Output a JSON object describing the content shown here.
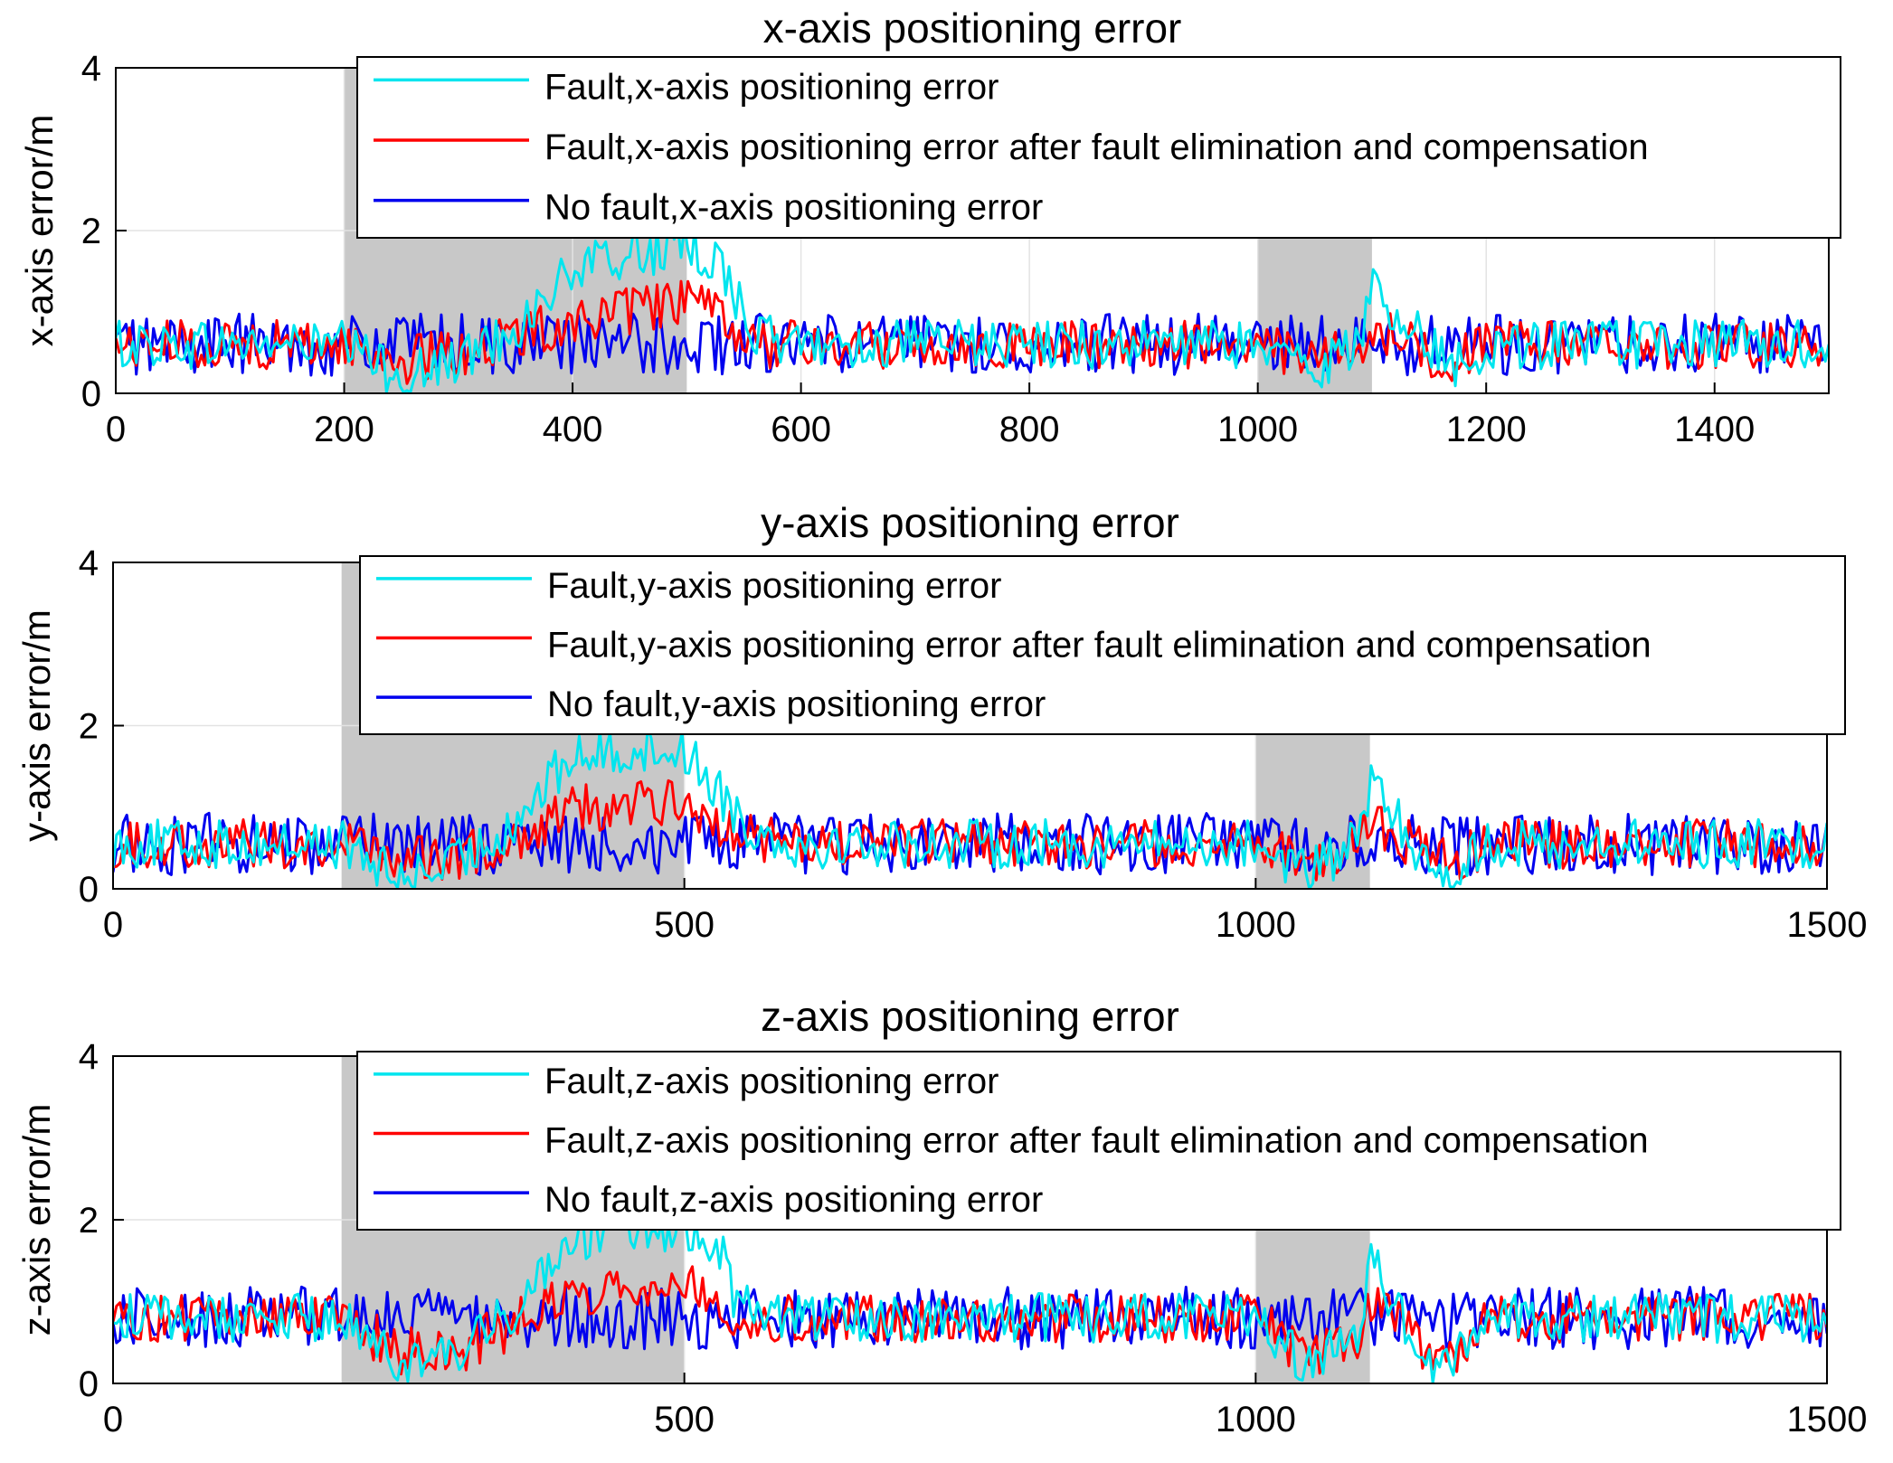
{
  "chart_data": [
    {
      "type": "line",
      "title": "x-axis positioning error",
      "xlabel": "",
      "ylabel": "x-axis error/m",
      "xlim": [
        0,
        1500
      ],
      "ylim": [
        0,
        4
      ],
      "xticks": [
        "0",
        "200",
        "400",
        "600",
        "800",
        "1000",
        "1200",
        "1400"
      ],
      "xtick_values": [
        0,
        200,
        400,
        600,
        800,
        1000,
        1200,
        1400
      ],
      "yticks": [
        "0",
        "2",
        "4"
      ],
      "ytick_values": [
        0,
        2,
        4
      ],
      "grid": true,
      "legend_position": "top-right",
      "shaded_intervals": [
        [
          200,
          500
        ],
        [
          1000,
          1100
        ]
      ],
      "series": [
        {
          "name": "Fault,x-axis positioning error",
          "color": "#00e5ee",
          "x": [
            0,
            100,
            200,
            250,
            300,
            350,
            400,
            450,
            500,
            530,
            560,
            600,
            700,
            800,
            900,
            1000,
            1050,
            1090,
            1100,
            1150,
            1170,
            1200,
            1300,
            1400,
            1500
          ],
          "values": [
            0.6,
            0.6,
            0.6,
            0.2,
            0.4,
            0.8,
            1.5,
            1.7,
            1.8,
            1.6,
            0.7,
            0.6,
            0.6,
            0.6,
            0.6,
            0.6,
            0.3,
            0.6,
            1.3,
            0.6,
            0.3,
            0.6,
            0.6,
            0.6,
            0.6
          ]
        },
        {
          "name": "Fault,x-axis positioning error after fault elimination and compensation",
          "color": "#ff0000",
          "x": [
            0,
            100,
            200,
            250,
            300,
            350,
            400,
            450,
            500,
            530,
            560,
            600,
            700,
            800,
            900,
            1000,
            1050,
            1090,
            1100,
            1150,
            1170,
            1200,
            1300,
            1400,
            1500
          ],
          "values": [
            0.6,
            0.6,
            0.6,
            0.4,
            0.5,
            0.7,
            0.9,
            1.0,
            1.15,
            0.9,
            0.6,
            0.6,
            0.6,
            0.6,
            0.6,
            0.6,
            0.4,
            0.6,
            0.8,
            0.5,
            0.4,
            0.6,
            0.6,
            0.6,
            0.6
          ]
        },
        {
          "name": "No fault,x-axis positioning error",
          "color": "#0000ee",
          "x": [
            0,
            100,
            200,
            300,
            400,
            500,
            600,
            700,
            800,
            900,
            1000,
            1100,
            1200,
            1300,
            1400,
            1500
          ],
          "values": [
            0.6,
            0.6,
            0.6,
            0.6,
            0.6,
            0.6,
            0.6,
            0.6,
            0.6,
            0.6,
            0.6,
            0.6,
            0.6,
            0.6,
            0.6,
            0.6
          ]
        }
      ]
    },
    {
      "type": "line",
      "title": "y-axis positioning error",
      "xlabel": "",
      "ylabel": "y-axis error/m",
      "xlim": [
        0,
        1500
      ],
      "ylim": [
        0,
        4
      ],
      "xticks": [
        "0",
        "500",
        "1000",
        "1500"
      ],
      "xtick_values": [
        0,
        500,
        1000,
        1500
      ],
      "yticks": [
        "0",
        "2",
        "4"
      ],
      "ytick_values": [
        0,
        2,
        4
      ],
      "grid": true,
      "legend_position": "top-right",
      "shaded_intervals": [
        [
          200,
          500
        ],
        [
          1000,
          1100
        ]
      ],
      "series": [
        {
          "name": "Fault,y-axis positioning error",
          "color": "#00e5ee",
          "x": [
            0,
            100,
            200,
            250,
            300,
            350,
            400,
            450,
            500,
            530,
            560,
            600,
            700,
            800,
            900,
            1000,
            1050,
            1090,
            1100,
            1150,
            1170,
            1200,
            1300,
            1400,
            1500
          ],
          "values": [
            0.55,
            0.55,
            0.55,
            0.1,
            0.3,
            0.8,
            1.6,
            1.7,
            1.7,
            1.2,
            0.7,
            0.55,
            0.55,
            0.55,
            0.55,
            0.55,
            0.2,
            0.6,
            1.3,
            0.3,
            0.1,
            0.55,
            0.55,
            0.55,
            0.55
          ]
        },
        {
          "name": "Fault,y-axis positioning error after fault elimination and compensation",
          "color": "#ff0000",
          "x": [
            0,
            100,
            200,
            250,
            300,
            350,
            400,
            450,
            500,
            530,
            560,
            600,
            700,
            800,
            900,
            1000,
            1050,
            1090,
            1100,
            1150,
            1170,
            1200,
            1300,
            1400,
            1500
          ],
          "values": [
            0.55,
            0.55,
            0.55,
            0.4,
            0.35,
            0.6,
            1.0,
            1.0,
            1.1,
            0.8,
            0.6,
            0.55,
            0.55,
            0.55,
            0.55,
            0.55,
            0.3,
            0.6,
            0.9,
            0.4,
            0.3,
            0.55,
            0.55,
            0.55,
            0.55
          ]
        },
        {
          "name": "No fault,y-axis positioning error",
          "color": "#0000ee",
          "x": [
            0,
            100,
            200,
            300,
            400,
            500,
            600,
            700,
            800,
            900,
            1000,
            1100,
            1200,
            1300,
            1400,
            1500
          ],
          "values": [
            0.55,
            0.55,
            0.55,
            0.55,
            0.55,
            0.55,
            0.55,
            0.55,
            0.55,
            0.55,
            0.55,
            0.55,
            0.55,
            0.55,
            0.55,
            0.55
          ]
        }
      ]
    },
    {
      "type": "line",
      "title": "z-axis positioning error",
      "xlabel": "",
      "ylabel": "z-axis error/m",
      "xlim": [
        0,
        1500
      ],
      "ylim": [
        0,
        4
      ],
      "xticks": [
        "0",
        "500",
        "1000",
        "1500"
      ],
      "xtick_values": [
        0,
        500,
        1000,
        1500
      ],
      "yticks": [
        "0",
        "2",
        "4"
      ],
      "ytick_values": [
        0,
        2,
        4
      ],
      "grid": true,
      "legend_position": "top-right",
      "shaded_intervals": [
        [
          200,
          500
        ],
        [
          1000,
          1100
        ]
      ],
      "series": [
        {
          "name": "Fault,z-axis positioning error",
          "color": "#00e5ee",
          "x": [
            0,
            100,
            200,
            250,
            300,
            350,
            400,
            450,
            500,
            530,
            545,
            600,
            700,
            800,
            900,
            1000,
            1050,
            1090,
            1100,
            1150,
            1170,
            1200,
            1300,
            1400,
            1500
          ],
          "values": [
            0.8,
            0.8,
            0.8,
            0.2,
            0.3,
            0.9,
            1.8,
            1.85,
            1.9,
            1.7,
            1.0,
            0.8,
            0.8,
            0.8,
            0.8,
            0.8,
            0.2,
            0.6,
            1.5,
            0.3,
            0.2,
            0.8,
            0.8,
            0.8,
            0.8
          ]
        },
        {
          "name": "Fault,z-axis positioning error after fault elimination and compensation",
          "color": "#ff0000",
          "x": [
            0,
            100,
            200,
            250,
            300,
            350,
            400,
            450,
            500,
            530,
            545,
            600,
            700,
            800,
            900,
            1000,
            1050,
            1090,
            1100,
            1150,
            1170,
            1200,
            1300,
            1400,
            1500
          ],
          "values": [
            0.8,
            0.8,
            0.8,
            0.4,
            0.4,
            0.7,
            1.1,
            1.2,
            1.3,
            1.0,
            0.8,
            0.8,
            0.8,
            0.8,
            0.8,
            0.8,
            0.3,
            0.6,
            1.0,
            0.4,
            0.3,
            0.8,
            0.8,
            0.8,
            0.8
          ]
        },
        {
          "name": "No fault,z-axis positioning error",
          "color": "#0000ee",
          "x": [
            0,
            100,
            200,
            300,
            400,
            500,
            600,
            700,
            800,
            900,
            1000,
            1100,
            1200,
            1300,
            1400,
            1500
          ],
          "values": [
            0.8,
            0.8,
            0.8,
            0.8,
            0.8,
            0.8,
            0.8,
            0.8,
            0.8,
            0.8,
            0.8,
            0.8,
            0.8,
            0.8,
            0.8,
            0.8
          ]
        }
      ]
    }
  ]
}
